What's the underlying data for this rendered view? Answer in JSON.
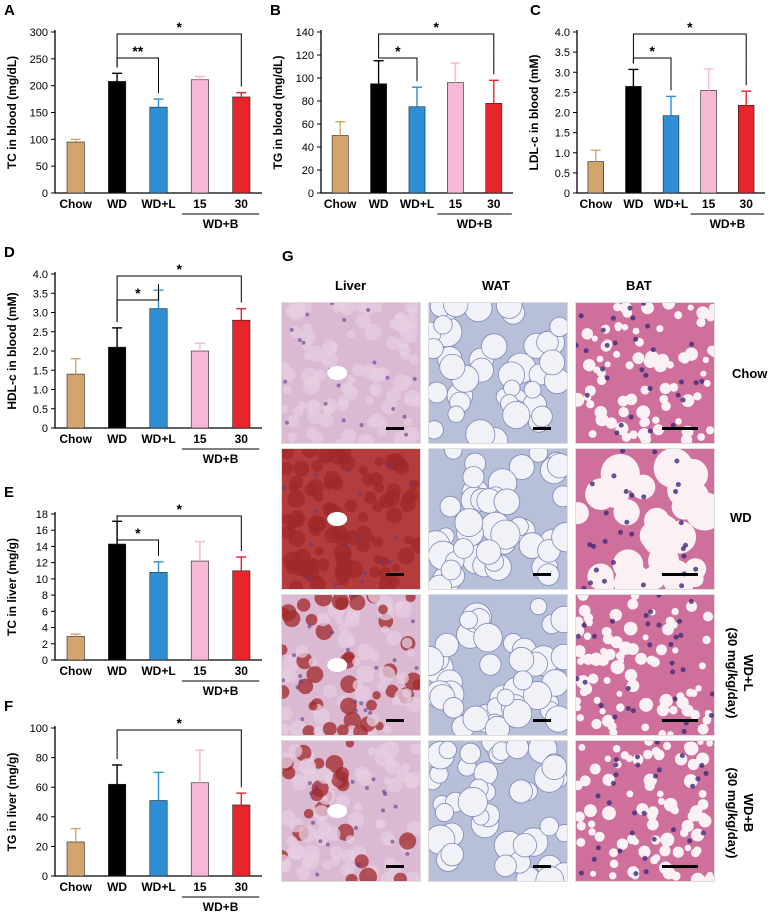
{
  "colors": {
    "chow": "#d2a56c",
    "wd": "#000000",
    "wdl": "#2e8fd6",
    "b15": "#f7b8d5",
    "b30": "#e8242c",
    "liver_normal": "#dcb9d3",
    "liver_fat": "#b43c3c",
    "wat": "#b7bfd9",
    "bat": "#cf6f9b"
  },
  "chart_data": [
    {
      "type": "bar",
      "panel": "A",
      "categories": [
        "Chow",
        "WD",
        "WD+L",
        "15",
        "30"
      ],
      "group_label": "WD+B",
      "values": [
        95,
        208,
        160,
        211,
        179
      ],
      "errors": [
        5,
        15,
        15,
        6,
        8
      ],
      "ylabel": "TC in blood (mg/dL)",
      "ylim": [
        0,
        300
      ],
      "yticks": [
        "0",
        "50",
        "100",
        "150",
        "200",
        "250",
        "300"
      ],
      "significance": [
        {
          "from": 1,
          "to": 2,
          "label": "**"
        },
        {
          "from": 1,
          "to": 4,
          "label": "*"
        }
      ]
    },
    {
      "type": "bar",
      "panel": "B",
      "categories": [
        "Chow",
        "WD",
        "WD+L",
        "15",
        "30"
      ],
      "group_label": "WD+B",
      "values": [
        50,
        95,
        75,
        96,
        78
      ],
      "errors": [
        12,
        20,
        17,
        17,
        20
      ],
      "ylabel": "TG in blood (mg/dL)",
      "ylim": [
        0,
        140
      ],
      "yticks": [
        "0",
        "20",
        "40",
        "60",
        "80",
        "100",
        "120",
        "140"
      ],
      "significance": [
        {
          "from": 1,
          "to": 2,
          "label": "*"
        },
        {
          "from": 1,
          "to": 4,
          "label": "*"
        }
      ]
    },
    {
      "type": "bar",
      "panel": "C",
      "categories": [
        "Chow",
        "WD",
        "WD+L",
        "15",
        "30"
      ],
      "group_label": "WD+B",
      "values": [
        0.78,
        2.65,
        1.92,
        2.55,
        2.18
      ],
      "errors": [
        0.28,
        0.42,
        0.48,
        0.53,
        0.35
      ],
      "ylabel": "LDL-c in blood (mM)",
      "ylim": [
        0,
        4.0
      ],
      "yticks": [
        "0",
        "0.5",
        "1.0",
        "1.5",
        "2.0",
        "2.5",
        "3.0",
        "3.5",
        "4.0"
      ],
      "significance": [
        {
          "from": 1,
          "to": 2,
          "label": "*"
        },
        {
          "from": 1,
          "to": 4,
          "label": "*"
        }
      ]
    },
    {
      "type": "bar",
      "panel": "D",
      "categories": [
        "Chow",
        "WD",
        "WD+L",
        "15",
        "30"
      ],
      "group_label": "WD+B",
      "values": [
        1.4,
        2.1,
        3.1,
        2.0,
        2.8
      ],
      "errors": [
        0.4,
        0.5,
        0.48,
        0.2,
        0.3
      ],
      "ylabel": "HDL-c in blood (mM)",
      "ylim": [
        0,
        4.0
      ],
      "yticks": [
        "0",
        "0.5",
        "1.0",
        "1.5",
        "2.0",
        "2.5",
        "3.0",
        "3.5",
        "4.0"
      ],
      "significance": [
        {
          "from": 1,
          "to": 2,
          "label": "*"
        },
        {
          "from": 1,
          "to": 4,
          "label": "*"
        }
      ]
    },
    {
      "type": "bar",
      "panel": "E",
      "categories": [
        "Chow",
        "WD",
        "WD+L",
        "15",
        "30"
      ],
      "group_label": "WD+B",
      "values": [
        2.9,
        14.3,
        10.8,
        12.2,
        11.0
      ],
      "errors": [
        0.3,
        2.8,
        1.3,
        2.4,
        1.7
      ],
      "ylabel": "TC in liver (mg/g)",
      "ylim": [
        0,
        18
      ],
      "yticks": [
        "0",
        "2",
        "4",
        "6",
        "8",
        "10",
        "12",
        "14",
        "16",
        "18"
      ],
      "significance": [
        {
          "from": 1,
          "to": 2,
          "label": "*"
        },
        {
          "from": 1,
          "to": 4,
          "label": "*"
        }
      ]
    },
    {
      "type": "bar",
      "panel": "F",
      "categories": [
        "Chow",
        "WD",
        "WD+L",
        "15",
        "30"
      ],
      "group_label": "WD+B",
      "values": [
        23,
        62,
        51,
        63,
        48
      ],
      "errors": [
        9,
        13,
        19,
        22,
        8
      ],
      "ylabel": "TG in liver (mg/g)",
      "ylim": [
        0,
        100
      ],
      "yticks": [
        "0",
        "20",
        "40",
        "60",
        "80",
        "100"
      ],
      "significance": [
        {
          "from": 1,
          "to": 4,
          "label": "*"
        }
      ]
    }
  ],
  "histology": {
    "panel": "G",
    "columns": [
      "Liver",
      "WAT",
      "BAT"
    ],
    "rows": [
      {
        "label": "Chow",
        "sub": ""
      },
      {
        "label": "WD",
        "sub": ""
      },
      {
        "label": "WD+L",
        "sub": "(30 mg/kg/day)"
      },
      {
        "label": "WD+B",
        "sub": "(30 mg/kg/day)"
      }
    ]
  }
}
